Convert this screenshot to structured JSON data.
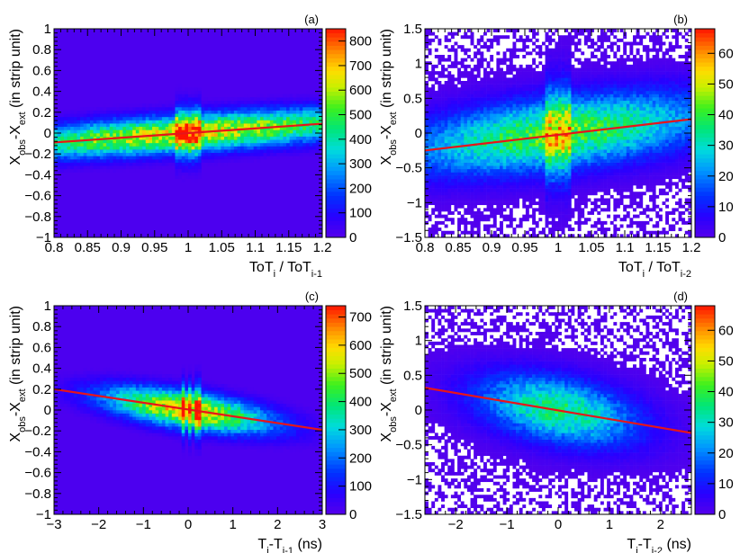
{
  "chart_data": [
    {
      "type": "heatmap",
      "panel_label": "(a)",
      "xlabel": {
        "base": "ToT",
        "sub1": "i",
        "sep": " / ToT",
        "sub2": "i-1"
      },
      "ylabel": {
        "base": "X",
        "sub1": "obs",
        "mid": "-X",
        "sub2": "ext",
        "suffix": " (in strip unit)"
      },
      "xlim": [
        0.8,
        1.2
      ],
      "ylim": [
        -1,
        1
      ],
      "xticks": [
        "0.8",
        "0.85",
        "0.9",
        "0.95",
        "1",
        "1.05",
        "1.1",
        "1.15",
        "1.2"
      ],
      "yticks": [
        "−1",
        "−0.8",
        "−0.6",
        "−0.4",
        "−0.2",
        "0",
        "0.2",
        "0.4",
        "0.6",
        "0.8",
        "1"
      ],
      "zlim": [
        0,
        850
      ],
      "zticks": [
        "0",
        "100",
        "200",
        "300",
        "400",
        "500",
        "600",
        "700",
        "800"
      ],
      "fit_line": {
        "x": [
          0.8,
          1.2
        ],
        "y": [
          -0.09,
          0.09
        ]
      },
      "density": {
        "center_x": 1.0,
        "width_x": 0.22,
        "width_y": 0.12,
        "peak": 650,
        "slope": 0.45,
        "spike_x": [
          0.985,
          0.995,
          1.005,
          1.015
        ]
      }
    },
    {
      "type": "heatmap",
      "panel_label": "(b)",
      "xlabel": {
        "base": "ToT",
        "sub1": "i",
        "sep": " / ToT",
        "sub2": "i-2"
      },
      "ylabel": {
        "base": "X",
        "sub1": "obs",
        "mid": "-X",
        "sub2": "ext",
        "suffix": " (in strip unit)"
      },
      "xlim": [
        0.8,
        1.2
      ],
      "ylim": [
        -1.5,
        1.5
      ],
      "xticks": [
        "0.8",
        "0.85",
        "0.9",
        "0.95",
        "1",
        "1.05",
        "1.1",
        "1.15",
        "1.2"
      ],
      "yticks": [
        "−1.5",
        "−1",
        "−0.5",
        "0",
        "0.5",
        "1",
        "1.5"
      ],
      "zlim": [
        0,
        68
      ],
      "zticks": [
        "0",
        "10",
        "20",
        "30",
        "40",
        "50",
        "60"
      ],
      "fit_line": {
        "x": [
          0.8,
          1.2
        ],
        "y": [
          -0.25,
          0.2
        ]
      },
      "density": {
        "center_x": 1.0,
        "width_x": 0.16,
        "width_y": 0.35,
        "peak": 42,
        "slope": 1.1,
        "spike_x": [
          0.985,
          0.995,
          1.005,
          1.015
        ]
      }
    },
    {
      "type": "heatmap",
      "panel_label": "(c)",
      "xlabel": {
        "base": "T",
        "sub1": "i",
        "sep": "-T",
        "sub2": "i-1",
        "suffix": " (ns)"
      },
      "ylabel": {
        "base": "X",
        "sub1": "obs",
        "mid": "-X",
        "sub2": "ext",
        "suffix": " (in strip unit)"
      },
      "xlim": [
        -3,
        3
      ],
      "ylim": [
        -1,
        1
      ],
      "xticks": [
        "−3",
        "−2",
        "−1",
        "0",
        "1",
        "2",
        "3"
      ],
      "yticks": [
        "−1",
        "−0.8",
        "−0.6",
        "−0.4",
        "−0.2",
        "0",
        "0.2",
        "0.4",
        "0.6",
        "0.8",
        "1"
      ],
      "zlim": [
        0,
        740
      ],
      "zticks": [
        "0",
        "100",
        "200",
        "300",
        "400",
        "500",
        "600",
        "700"
      ],
      "fit_line": {
        "x": [
          -3,
          3
        ],
        "y": [
          0.2,
          -0.19
        ]
      },
      "density": {
        "center_x": 0.0,
        "width_x": 1.3,
        "width_y": 0.12,
        "peak": 600,
        "slope": -0.065,
        "spike_x": [
          -0.1,
          0.05,
          0.2
        ]
      }
    },
    {
      "type": "heatmap",
      "panel_label": "(d)",
      "xlabel": {
        "base": "T",
        "sub1": "i",
        "sep": "-T",
        "sub2": "i-2",
        "suffix": " (ns)"
      },
      "ylabel": {
        "base": "X",
        "sub1": "obs",
        "mid": "-X",
        "sub2": "ext",
        "suffix": " (in strip unit)"
      },
      "xlim": [
        -2.6,
        2.6
      ],
      "ylim": [
        -1.5,
        1.5
      ],
      "xticks": [
        "−2",
        "−1",
        "0",
        "1",
        "2"
      ],
      "yticks": [
        "−1.5",
        "−1",
        "−0.5",
        "0",
        "0.5",
        "1",
        "1.5"
      ],
      "zlim": [
        0,
        68
      ],
      "zticks": [
        "0",
        "10",
        "20",
        "30",
        "40",
        "50",
        "60"
      ],
      "fit_line": {
        "x": [
          -2.6,
          2.6
        ],
        "y": [
          0.32,
          -0.33
        ]
      },
      "density": {
        "center_x": 0.0,
        "width_x": 1.1,
        "width_y": 0.33,
        "peak": 36,
        "slope": -0.125,
        "spike_x": []
      }
    }
  ]
}
